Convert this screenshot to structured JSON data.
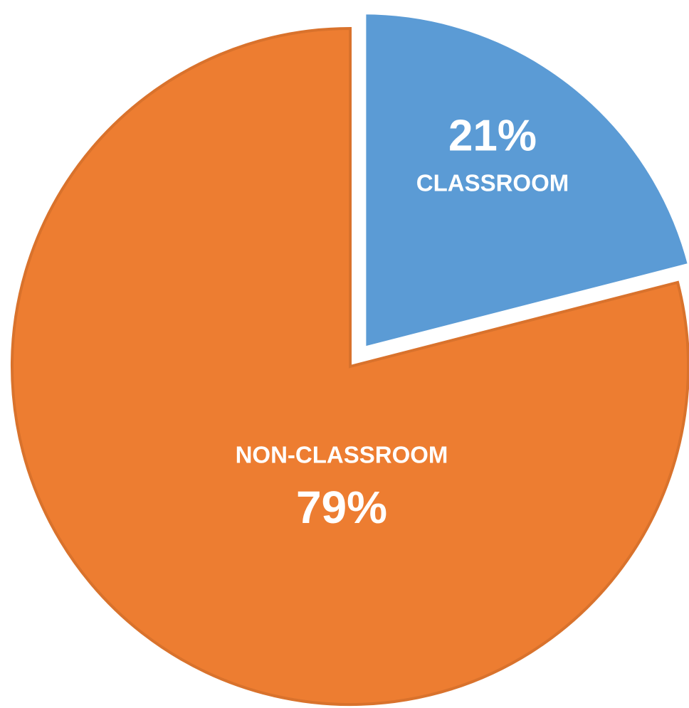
{
  "chart_data": {
    "type": "pie",
    "categories": [
      "CLASSROOM",
      "NON-CLASSROOM"
    ],
    "values": [
      21,
      79
    ],
    "value_labels": [
      "21%",
      "79%"
    ],
    "colors": [
      "#5b9bd5",
      "#ed7d31"
    ]
  }
}
